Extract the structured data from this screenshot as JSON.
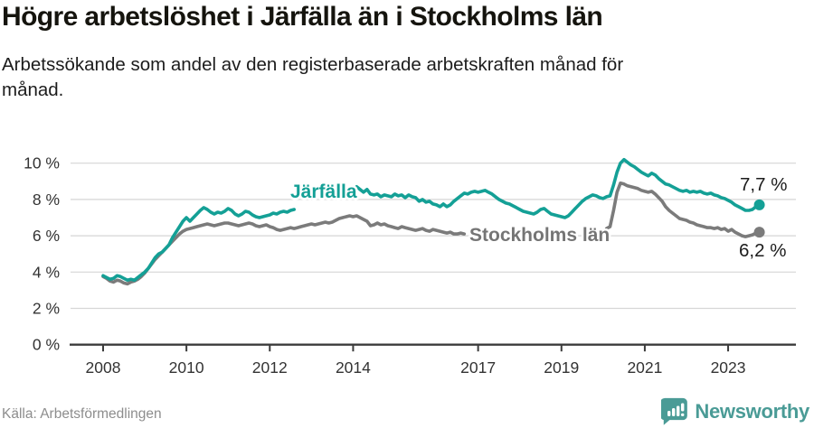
{
  "header": {
    "title": "Högre arbetslöshet i Järfälla än i Stockholms län",
    "subtitle": "Arbetssökande som andel av den registerbaserade arbetskraften månad för\nmånad."
  },
  "footer": {
    "source": "Källa: Arbetsförmedlingen",
    "brand": "Newsworthy"
  },
  "colors": {
    "jarfalla_teal": "#14a096",
    "stockholm_gray": "#7b7b7b",
    "end_label_black": "#1c1c1c",
    "brand_teal": "#4a9b96",
    "gridline": "#d6d6d6",
    "axis": "#3b3b3b",
    "tick_label": "#333333",
    "series_label_gray": "#757575"
  },
  "chart_data": {
    "type": "line",
    "title": "Högre arbetslöshet i Järfälla än i Stockholms län",
    "subtitle": "Arbetssökande som andel av den registerbaserade arbetskraften månad för månad.",
    "unit": "percent of registered labour force",
    "frequency": "monthly",
    "x_start": "2008-01",
    "x_end": "2023-10",
    "ylim": [
      0,
      10.5
    ],
    "grid": "horizontal",
    "legend_position": "inline-labels",
    "y_ticks": [
      0,
      2,
      4,
      6,
      8,
      10
    ],
    "y_tick_labels": [
      "0 %",
      "2 %",
      "4 %",
      "6 %",
      "8 %",
      "10 %"
    ],
    "x_tick_years": [
      2008,
      2010,
      2012,
      2014,
      2017,
      2019,
      2021,
      2023
    ],
    "x_tick_labels": [
      "2008",
      "2010",
      "2012",
      "2014",
      "2017",
      "2019",
      "2021",
      "2023"
    ],
    "series": [
      {
        "name": "Stockholms län",
        "color": "#7b7b7b",
        "end_label": "6,2 %",
        "end_value": 6.2,
        "label_gap_indices": [
          105,
          144
        ],
        "values": [
          3.75,
          3.65,
          3.5,
          3.45,
          3.55,
          3.5,
          3.4,
          3.35,
          3.45,
          3.5,
          3.6,
          3.75,
          3.95,
          4.2,
          4.45,
          4.7,
          4.9,
          5.1,
          5.3,
          5.5,
          5.7,
          5.9,
          6.1,
          6.25,
          6.35,
          6.4,
          6.45,
          6.5,
          6.55,
          6.6,
          6.65,
          6.6,
          6.55,
          6.6,
          6.65,
          6.7,
          6.7,
          6.65,
          6.6,
          6.55,
          6.6,
          6.65,
          6.7,
          6.65,
          6.55,
          6.5,
          6.55,
          6.6,
          6.5,
          6.45,
          6.35,
          6.3,
          6.35,
          6.4,
          6.45,
          6.4,
          6.45,
          6.5,
          6.55,
          6.6,
          6.65,
          6.6,
          6.65,
          6.7,
          6.75,
          6.7,
          6.75,
          6.85,
          6.95,
          7.0,
          7.05,
          7.1,
          7.05,
          7.1,
          7.0,
          6.9,
          6.8,
          6.55,
          6.6,
          6.7,
          6.6,
          6.65,
          6.55,
          6.5,
          6.45,
          6.4,
          6.5,
          6.45,
          6.4,
          6.35,
          6.3,
          6.35,
          6.4,
          6.3,
          6.25,
          6.35,
          6.3,
          6.25,
          6.2,
          6.15,
          6.2,
          6.1,
          6.1,
          6.15,
          6.1,
          6.05,
          6.0,
          6.0,
          6.0,
          5.95,
          5.9,
          5.9,
          5.95,
          5.9,
          5.85,
          5.9,
          5.95,
          5.9,
          5.95,
          6.0,
          5.95,
          5.9,
          5.85,
          5.9,
          5.95,
          5.9,
          5.95,
          6.0,
          5.95,
          6.0,
          6.05,
          6.0,
          6.0,
          6.05,
          6.1,
          6.1,
          6.15,
          6.2,
          6.2,
          6.25,
          6.3,
          6.3,
          6.35,
          6.35,
          6.35,
          6.4,
          6.5,
          7.4,
          8.4,
          8.9,
          8.85,
          8.75,
          8.7,
          8.65,
          8.6,
          8.5,
          8.45,
          8.4,
          8.45,
          8.3,
          8.1,
          7.9,
          7.6,
          7.4,
          7.25,
          7.1,
          6.95,
          6.9,
          6.85,
          6.75,
          6.7,
          6.6,
          6.55,
          6.5,
          6.45,
          6.45,
          6.4,
          6.45,
          6.35,
          6.4,
          6.25,
          6.35,
          6.2,
          6.1,
          6.0,
          5.95,
          6.0,
          6.05,
          6.15,
          6.2
        ]
      },
      {
        "name": "Järfälla",
        "color": "#14a096",
        "end_label": "7,7 %",
        "end_value": 7.7,
        "label_gap_indices": [
          56,
          72
        ],
        "values": [
          3.8,
          3.7,
          3.6,
          3.65,
          3.8,
          3.75,
          3.65,
          3.55,
          3.6,
          3.55,
          3.7,
          3.85,
          4.0,
          4.2,
          4.5,
          4.8,
          5.0,
          5.1,
          5.3,
          5.5,
          5.9,
          6.2,
          6.5,
          6.8,
          7.0,
          6.8,
          7.0,
          7.2,
          7.4,
          7.55,
          7.45,
          7.3,
          7.2,
          7.3,
          7.25,
          7.35,
          7.5,
          7.4,
          7.2,
          7.1,
          7.2,
          7.35,
          7.3,
          7.15,
          7.05,
          7.0,
          7.05,
          7.1,
          7.15,
          7.25,
          7.2,
          7.3,
          7.35,
          7.3,
          7.4,
          7.45,
          7.5,
          7.55,
          7.65,
          7.7,
          7.75,
          7.8,
          7.85,
          7.9,
          8.0,
          8.1,
          8.15,
          8.2,
          8.3,
          8.4,
          8.5,
          8.55,
          8.6,
          8.7,
          8.55,
          8.4,
          8.55,
          8.3,
          8.25,
          8.3,
          8.15,
          8.25,
          8.2,
          8.15,
          8.3,
          8.2,
          8.25,
          8.1,
          8.25,
          8.15,
          8.1,
          7.9,
          8.0,
          7.85,
          7.9,
          7.75,
          7.7,
          7.6,
          7.75,
          7.6,
          7.7,
          7.9,
          8.05,
          8.2,
          8.35,
          8.3,
          8.4,
          8.45,
          8.4,
          8.45,
          8.5,
          8.4,
          8.3,
          8.15,
          8.0,
          7.9,
          7.8,
          7.75,
          7.65,
          7.55,
          7.45,
          7.35,
          7.3,
          7.25,
          7.2,
          7.3,
          7.45,
          7.5,
          7.35,
          7.2,
          7.15,
          7.1,
          7.05,
          7.0,
          7.1,
          7.3,
          7.5,
          7.7,
          7.9,
          8.05,
          8.15,
          8.25,
          8.2,
          8.1,
          8.05,
          8.15,
          8.2,
          8.8,
          9.5,
          10.0,
          10.2,
          10.05,
          9.9,
          9.8,
          9.65,
          9.5,
          9.4,
          9.3,
          9.45,
          9.35,
          9.15,
          9.0,
          8.85,
          8.8,
          8.7,
          8.6,
          8.5,
          8.45,
          8.5,
          8.4,
          8.45,
          8.4,
          8.45,
          8.35,
          8.3,
          8.35,
          8.25,
          8.2,
          8.1,
          8.05,
          7.95,
          7.85,
          7.7,
          7.6,
          7.5,
          7.4,
          7.4,
          7.45,
          7.6,
          7.7
        ]
      }
    ]
  }
}
